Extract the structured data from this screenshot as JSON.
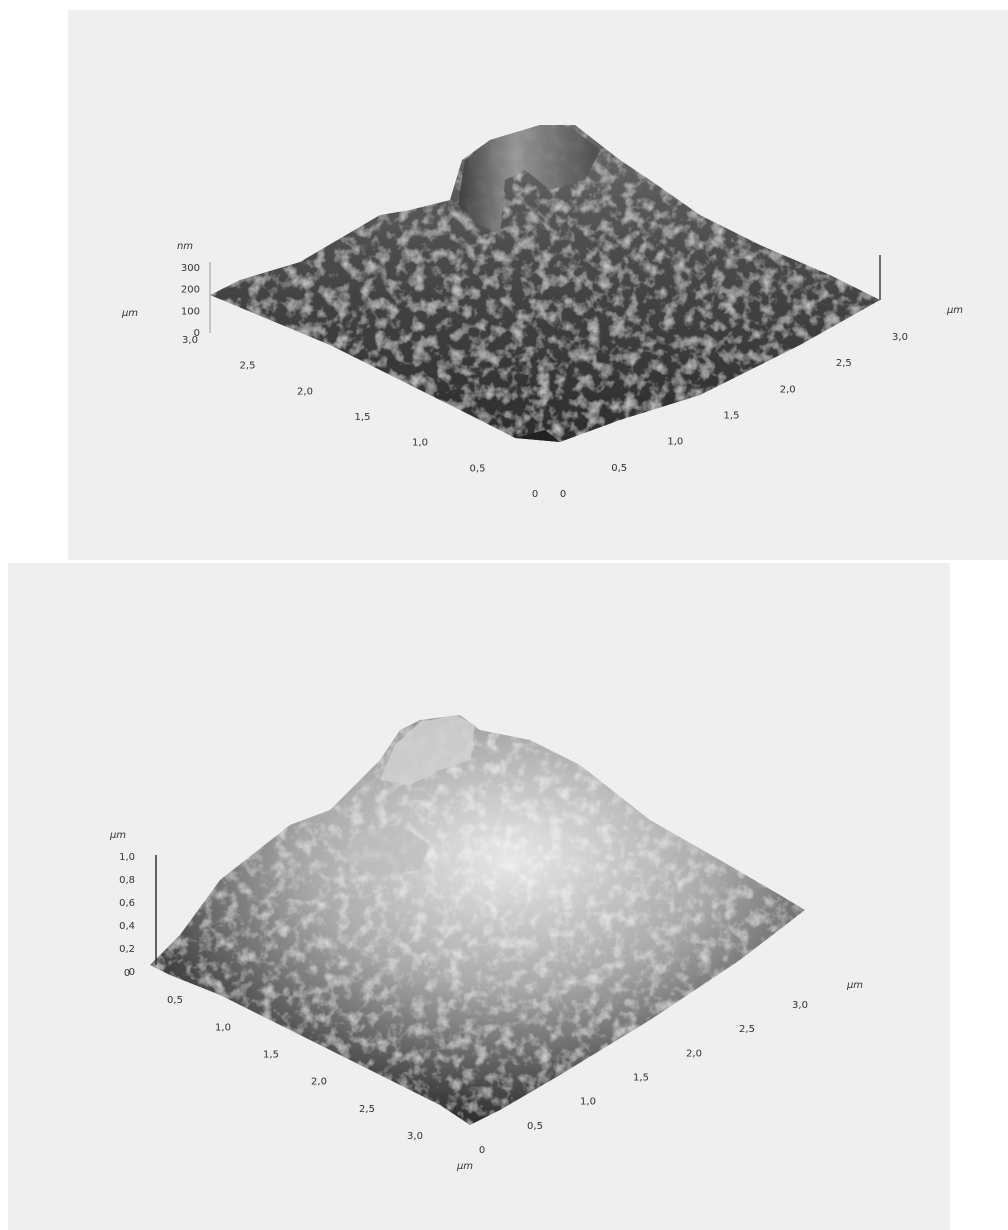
{
  "panels": [
    {
      "z_unit": "nm",
      "z_ticks": [
        "300",
        "200",
        "100",
        "0"
      ],
      "left_unit": "µm",
      "left_ticks": [
        "3,0",
        "2,5",
        "2,0",
        "1,5",
        "1,0",
        "0,5",
        "0"
      ],
      "right_unit": "µm",
      "right_ticks": [
        "0",
        "0,5",
        "1,0",
        "1,5",
        "2,0",
        "2,5",
        "3,0"
      ]
    },
    {
      "z_unit": "µm",
      "z_ticks": [
        "1,0",
        "0,8",
        "0,6",
        "0,4",
        "0,2",
        "0"
      ],
      "left_unit": "µm",
      "left_ticks": [
        "0",
        "0,5",
        "1,0",
        "1,5",
        "2,0",
        "2,5",
        "3,0"
      ],
      "right_unit": "µm",
      "right_ticks": [
        "0",
        "0,5",
        "1,0",
        "1,5",
        "2,0",
        "2,5",
        "3,0"
      ]
    }
  ]
}
